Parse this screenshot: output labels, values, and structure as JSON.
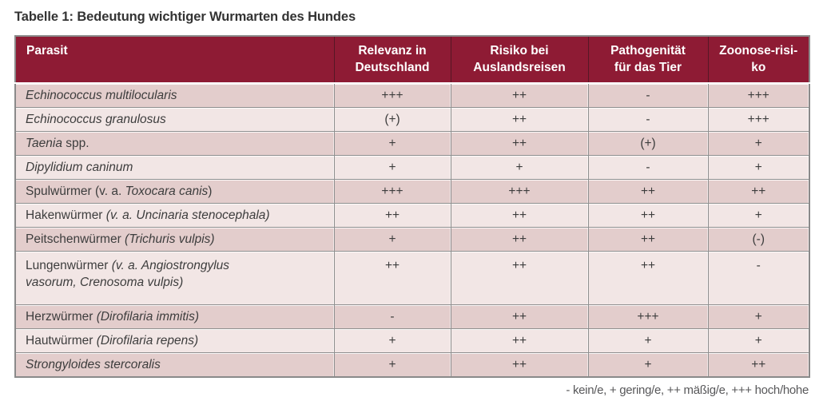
{
  "title": "Tabelle 1: Bedeutung wichtiger Wurmarten des Hundes",
  "table": {
    "columns": [
      {
        "key": "parasit",
        "align": "left",
        "label_lines": [
          "Parasit"
        ]
      },
      {
        "key": "relevanz-deutschland",
        "label_lines": [
          "Relevanz in",
          "Deutschland"
        ]
      },
      {
        "key": "risiko-auslandsreisen",
        "label_lines": [
          "Risiko bei",
          "Auslandsreisen"
        ]
      },
      {
        "key": "pathogenitaet-tier",
        "label_lines": [
          "Pathogenität",
          "für das Tier"
        ]
      },
      {
        "key": "zoonose-risiko",
        "label_lines": [
          "Zoonose-risi-",
          "ko"
        ]
      }
    ],
    "rows": [
      {
        "parasit": [
          {
            "text": "Echinococcus multilocularis",
            "italic": true
          }
        ],
        "values": [
          "+++",
          "++",
          "-",
          "+++"
        ]
      },
      {
        "parasit": [
          {
            "text": "Echinococcus granulosus",
            "italic": true
          }
        ],
        "values": [
          "(+)",
          "++",
          "-",
          "+++"
        ]
      },
      {
        "parasit": [
          {
            "text": "Taenia",
            "italic": true
          },
          {
            "text": " spp.",
            "italic": false
          }
        ],
        "values": [
          "+",
          "++",
          "(+)",
          "+"
        ]
      },
      {
        "parasit": [
          {
            "text": "Dipylidium caninum",
            "italic": true
          }
        ],
        "values": [
          "+",
          "+",
          "-",
          "+"
        ]
      },
      {
        "parasit": [
          {
            "text": "Spulwürmer (v. a. ",
            "italic": false
          },
          {
            "text": "Toxocara canis",
            "italic": true
          },
          {
            "text": ")",
            "italic": false
          }
        ],
        "values": [
          "+++",
          "+++",
          "++",
          "++"
        ]
      },
      {
        "parasit": [
          {
            "text": "Hakenwürmer ",
            "italic": false
          },
          {
            "text": "(v. a. Uncinaria stenocephala)",
            "italic": true
          }
        ],
        "values": [
          "++",
          "++",
          "++",
          "+"
        ]
      },
      {
        "parasit": [
          {
            "text": "Peitschenwürmer ",
            "italic": false
          },
          {
            "text": "(Trichuris vulpis)",
            "italic": true
          }
        ],
        "values": [
          "+",
          "++",
          "++",
          "(-)"
        ]
      },
      {
        "parasit": [
          {
            "text": "Lungenwürmer ",
            "italic": false
          },
          {
            "text": "(v. a. Angiostrongylus\nvasorum, Crenosoma vulpis)",
            "italic": true
          }
        ],
        "values": [
          "++",
          "++",
          "++",
          "-"
        ]
      },
      {
        "parasit": [
          {
            "text": "Herzwürmer ",
            "italic": false
          },
          {
            "text": "(Dirofilaria immitis)",
            "italic": true
          }
        ],
        "values": [
          "-",
          "++",
          "+++",
          "+"
        ]
      },
      {
        "parasit": [
          {
            "text": "Hautwürmer ",
            "italic": false
          },
          {
            "text": "(Dirofilaria repens)",
            "italic": true
          }
        ],
        "values": [
          "+",
          "++",
          "+",
          "+"
        ]
      },
      {
        "parasit": [
          {
            "text": "Strongyloides stercoralis",
            "italic": true
          }
        ],
        "values": [
          "+",
          "++",
          "+",
          "++"
        ]
      }
    ]
  },
  "legend": "- kein/e, + gering/e, ++ mäßig/e, +++ hoch/hohe",
  "colors": {
    "header_bg": "#8e1b34",
    "header_text": "#ffffff",
    "row_dark": "#e3cdcc",
    "row_light": "#f2e6e5",
    "grid": "#8f8f8f",
    "body_text": "#3d3d3d",
    "title_text": "#333333",
    "legend_text": "#58585a"
  }
}
